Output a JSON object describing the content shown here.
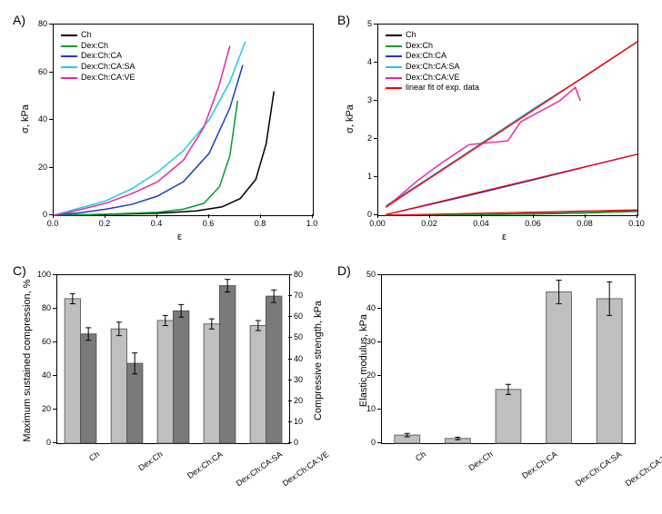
{
  "panels": {
    "A": {
      "label": "A)",
      "type": "line",
      "xlabel": "ε",
      "ylabel": "σ, kPa",
      "xlim": [
        0.0,
        1.0
      ],
      "xtick_step": 0.2,
      "ylim": [
        0,
        80
      ],
      "ytick_step": 20,
      "series": [
        {
          "name": "Ch",
          "color": "#000000",
          "data": [
            [
              0,
              0
            ],
            [
              0.2,
              0.3
            ],
            [
              0.4,
              0.8
            ],
            [
              0.55,
              1.8
            ],
            [
              0.65,
              3.5
            ],
            [
              0.72,
              7
            ],
            [
              0.78,
              15
            ],
            [
              0.82,
              30
            ],
            [
              0.85,
              52
            ]
          ]
        },
        {
          "name": "Dex:Ch",
          "color": "#009e2f",
          "data": [
            [
              0,
              0
            ],
            [
              0.2,
              0.4
            ],
            [
              0.4,
              1.2
            ],
            [
              0.5,
              2.5
            ],
            [
              0.58,
              5
            ],
            [
              0.64,
              12
            ],
            [
              0.68,
              25
            ],
            [
              0.71,
              48
            ]
          ]
        },
        {
          "name": "Dex:Ch:CA",
          "color": "#1a3fbf",
          "data": [
            [
              0,
              0
            ],
            [
              0.1,
              1
            ],
            [
              0.2,
              2.5
            ],
            [
              0.3,
              4.5
            ],
            [
              0.4,
              8
            ],
            [
              0.5,
              14
            ],
            [
              0.6,
              26
            ],
            [
              0.68,
              45
            ],
            [
              0.73,
              63
            ]
          ]
        },
        {
          "name": "Dex:Ch:CA:SA",
          "color": "#1ecde0",
          "data": [
            [
              0,
              0
            ],
            [
              0.05,
              1.5
            ],
            [
              0.1,
              3
            ],
            [
              0.2,
              6
            ],
            [
              0.3,
              11
            ],
            [
              0.4,
              18
            ],
            [
              0.5,
              27
            ],
            [
              0.6,
              40
            ],
            [
              0.68,
              56
            ],
            [
              0.74,
              73
            ]
          ]
        },
        {
          "name": "Dex:Ch:CA:VE",
          "color": "#e52ba0",
          "data": [
            [
              0,
              0
            ],
            [
              0.05,
              1
            ],
            [
              0.1,
              2.3
            ],
            [
              0.2,
              5
            ],
            [
              0.3,
              9
            ],
            [
              0.4,
              14
            ],
            [
              0.5,
              23
            ],
            [
              0.58,
              37
            ],
            [
              0.64,
              55
            ],
            [
              0.68,
              71
            ]
          ]
        }
      ]
    },
    "B": {
      "label": "B)",
      "type": "line",
      "xlabel": "ε",
      "ylabel": "σ, kPa",
      "xlim": [
        0.0,
        0.1
      ],
      "xtick_step": 0.02,
      "ylim": [
        0,
        5
      ],
      "ytick_step": 1,
      "series": [
        {
          "name": "Ch",
          "color": "#000000",
          "data": [
            [
              0.003,
              0
            ],
            [
              0.02,
              0.01
            ],
            [
              0.04,
              0.02
            ],
            [
              0.06,
              0.04
            ],
            [
              0.08,
              0.07
            ],
            [
              0.1,
              0.11
            ]
          ]
        },
        {
          "name": "Dex:Ch",
          "color": "#009e2f",
          "data": [
            [
              0.003,
              0
            ],
            [
              0.02,
              0.01
            ],
            [
              0.04,
              0.02
            ],
            [
              0.06,
              0.03
            ],
            [
              0.08,
              0.06
            ],
            [
              0.1,
              0.1
            ]
          ]
        },
        {
          "name": "Dex:Ch:CA",
          "color": "#1a3fbf",
          "data": [
            [
              0.003,
              0.02
            ],
            [
              0.02,
              0.28
            ],
            [
              0.04,
              0.6
            ],
            [
              0.06,
              0.93
            ],
            [
              0.08,
              1.27
            ],
            [
              0.1,
              1.6
            ]
          ]
        },
        {
          "name": "Dex:Ch:CA:SA",
          "color": "#1ecde0",
          "data": [
            [
              0.003,
              0.25
            ],
            [
              0.02,
              1.0
            ],
            [
              0.04,
              1.9
            ],
            [
              0.06,
              2.8
            ],
            [
              0.08,
              3.65
            ],
            [
              0.1,
              4.55
            ]
          ]
        },
        {
          "name": "Dex:Ch:CA:VE",
          "color": "#e52ba0",
          "data": [
            [
              0.003,
              0.2
            ],
            [
              0.015,
              0.9
            ],
            [
              0.025,
              1.4
            ],
            [
              0.035,
              1.85
            ],
            [
              0.05,
              1.95
            ],
            [
              0.055,
              2.45
            ],
            [
              0.07,
              3.0
            ],
            [
              0.076,
              3.35
            ],
            [
              0.078,
              3.0
            ]
          ]
        },
        {
          "name": "linear fit of exp. data",
          "color": "#ff0000",
          "data": [
            [
              0.003,
              0.22
            ],
            [
              0.1,
              4.55
            ]
          ]
        }
      ],
      "extra_fits": [
        {
          "color": "#ff0000",
          "data": [
            [
              0.003,
              0.02
            ],
            [
              0.1,
              1.6
            ]
          ]
        },
        {
          "color": "#ff0000",
          "data": [
            [
              0.003,
              0
            ],
            [
              0.1,
              0.14
            ]
          ]
        }
      ]
    },
    "C": {
      "label": "C)",
      "type": "grouped_bar",
      "categories": [
        "Ch",
        "Dex:Ch",
        "Dex:Ch:CA",
        "Dex:Ch:CA:SA",
        "Dex:Ch:CA:VE"
      ],
      "y1label": "Maximum sustained compression, %",
      "y2label": "Compressive strength, kPa",
      "y1lim": [
        0,
        100
      ],
      "y1tick_step": 20,
      "y2lim": [
        0,
        80
      ],
      "y2tick_step": 10,
      "bar1_color": "#bfbfbf",
      "bar2_color": "#7a7a7a",
      "bars1": [
        86,
        68,
        73,
        71,
        70
      ],
      "bars1_err": [
        3,
        4,
        3,
        3,
        3
      ],
      "bars2": [
        52,
        38,
        63,
        75,
        70
      ],
      "bars2_err": [
        3,
        5,
        3,
        3,
        3
      ]
    },
    "D": {
      "label": "D)",
      "type": "bar",
      "categories": [
        "Ch",
        "Dex:Ch",
        "Dex:Ch:CA",
        "Dex:Ch:CA:SA",
        "Dex:Ch:CA:VE"
      ],
      "ylabel": "Elastic modulus, kPa",
      "ylim": [
        0,
        50
      ],
      "ytick_step": 10,
      "bar_color": "#bfbfbf",
      "values": [
        2.4,
        1.4,
        16,
        45,
        43
      ],
      "err": [
        0.5,
        0.4,
        1.5,
        3.5,
        5
      ]
    }
  },
  "label_fontsize": 11,
  "tick_fontsize": 9
}
